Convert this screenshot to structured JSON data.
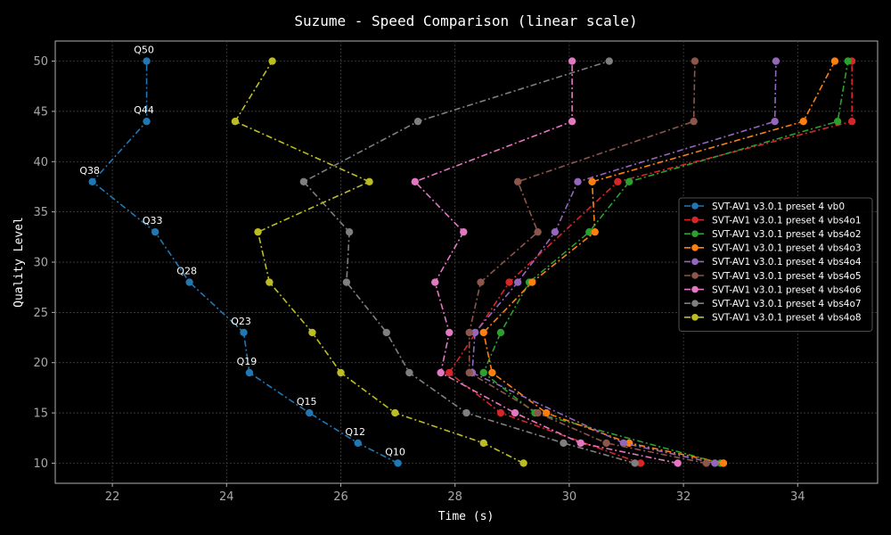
{
  "chart_data": {
    "type": "line",
    "title": "Suzume - Speed Comparison (linear scale)",
    "xlabel": "Time (s)",
    "ylabel": "Quality Level",
    "xlim": [
      21,
      35.4
    ],
    "ylim": [
      8,
      52
    ],
    "xticks": [
      22,
      24,
      26,
      28,
      30,
      32,
      34
    ],
    "yticks": [
      10,
      15,
      20,
      25,
      30,
      35,
      40,
      45,
      50
    ],
    "grid": true,
    "legend_position": "center-right",
    "background": "#000000",
    "series": [
      {
        "name": "SVT-AV1 v3.0.1 preset 4 vb0",
        "color": "#1f77b4",
        "x": [
          27.0,
          26.3,
          25.45,
          24.4,
          24.3,
          23.35,
          22.75,
          21.65,
          22.6,
          22.6
        ],
        "y": [
          10,
          12,
          15,
          19,
          23,
          28,
          33,
          38,
          44,
          50
        ],
        "point_labels": [
          "Q10",
          "Q12",
          "Q15",
          "Q19",
          "Q23",
          "Q28",
          "Q33",
          "Q38",
          "Q44",
          "Q50"
        ]
      },
      {
        "name": "SVT-AV1 v3.0.1 preset 4 vbs4o1",
        "color": "#d62728",
        "x": [
          31.25,
          28.8,
          27.9,
          28.95,
          30.85,
          34.95,
          34.95
        ],
        "y": [
          10,
          15,
          19,
          28,
          38,
          44,
          50
        ]
      },
      {
        "name": "SVT-AV1 v3.0.1 preset 4 vbs4o2",
        "color": "#2ca02c",
        "x": [
          32.65,
          29.4,
          28.5,
          28.8,
          29.3,
          30.35,
          31.05,
          34.7,
          34.88
        ],
        "y": [
          10,
          15,
          19,
          23,
          28,
          33,
          38,
          44,
          50
        ]
      },
      {
        "name": "SVT-AV1 v3.0.1 preset 4 vbs4o3",
        "color": "#ff7f0e",
        "x": [
          32.7,
          31.05,
          29.6,
          28.65,
          28.5,
          29.35,
          30.45,
          30.4,
          34.1,
          34.65
        ],
        "y": [
          10,
          12,
          15,
          19,
          23,
          28,
          33,
          38,
          44,
          50
        ]
      },
      {
        "name": "SVT-AV1 v3.0.1 preset 4 vbs4o4",
        "color": "#9467bd",
        "x": [
          32.55,
          30.95,
          28.3,
          28.35,
          29.1,
          29.75,
          30.15,
          33.6,
          33.62
        ],
        "y": [
          10,
          12,
          19,
          23,
          28,
          33,
          38,
          44,
          50
        ]
      },
      {
        "name": "SVT-AV1 v3.0.1 preset 4 vbs4o5",
        "color": "#8c564b",
        "x": [
          32.4,
          30.65,
          29.45,
          28.25,
          28.25,
          28.45,
          29.45,
          29.1,
          32.18,
          32.2
        ],
        "y": [
          10,
          12,
          15,
          19,
          23,
          28,
          33,
          38,
          44,
          50
        ]
      },
      {
        "name": "SVT-AV1 v3.0.1 preset 4 vbs4o6",
        "color": "#e377c2",
        "x": [
          31.9,
          30.2,
          29.05,
          27.75,
          27.9,
          27.65,
          28.15,
          27.3,
          30.05,
          30.05
        ],
        "y": [
          10,
          12,
          15,
          19,
          23,
          28,
          33,
          38,
          44,
          50
        ]
      },
      {
        "name": "SVT-AV1 v3.0.1 preset 4 vbs4o7",
        "color": "#7f7f7f",
        "x": [
          31.15,
          29.9,
          28.2,
          27.2,
          26.8,
          26.1,
          26.15,
          25.35,
          27.35,
          30.7
        ],
        "y": [
          10,
          12,
          15,
          19,
          23,
          28,
          33,
          38,
          44,
          50
        ]
      },
      {
        "name": "SVT-AV1 v3.0.1 preset 4 vbs4o8",
        "color": "#bcbd22",
        "x": [
          29.2,
          28.5,
          26.95,
          26.0,
          25.5,
          24.75,
          24.55,
          26.5,
          24.15,
          24.8
        ],
        "y": [
          10,
          12,
          15,
          19,
          23,
          28,
          33,
          38,
          44,
          50
        ]
      }
    ]
  }
}
